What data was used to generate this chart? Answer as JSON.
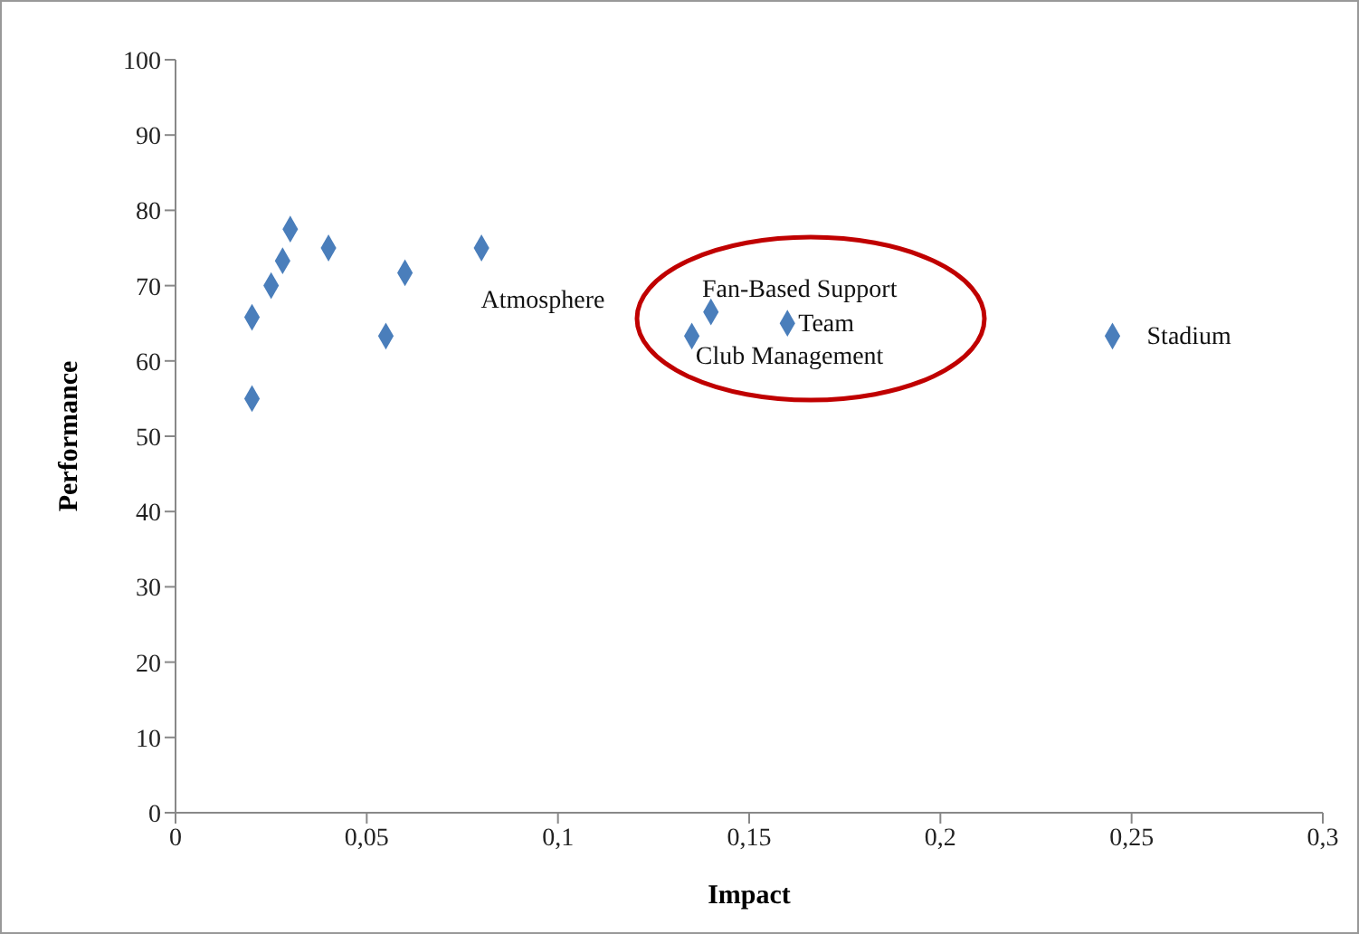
{
  "chart_data": {
    "type": "scatter",
    "xlabel": "Impact",
    "ylabel": "Performance",
    "x": [
      0.02,
      0.02,
      0.025,
      0.028,
      0.03,
      0.04,
      0.055,
      0.06,
      0.08,
      0.135,
      0.14,
      0.16,
      0.245
    ],
    "series": [
      {
        "color": "#4a7ebb",
        "values": [
          55,
          65.8,
          70,
          73.3,
          77.5,
          75,
          63.3,
          71.7,
          75,
          63.3,
          66.5,
          65,
          63.3
        ]
      }
    ],
    "xlim": [
      0,
      0.3
    ],
    "xticks": [
      0,
      {
        "value": 0.05,
        "label": "0,05"
      },
      {
        "value": 0.1,
        "label": "0,1"
      },
      {
        "value": 0.15,
        "label": "0,15"
      },
      {
        "value": 0.2,
        "label": "0,2"
      },
      {
        "value": 0.25,
        "label": "0,25"
      },
      {
        "value": 0.3,
        "label": "0,3"
      }
    ],
    "ylim": [
      0,
      100
    ],
    "yticks": [
      0,
      10,
      20,
      30,
      40,
      50,
      60,
      70,
      80,
      90,
      100
    ],
    "grid": false,
    "marker": "diamond",
    "annotations": [
      "Atmosphere",
      {
        "text": "Fan-Based Support",
        "x": 0.14,
        "y": 66.5
      },
      {
        "text": "Team",
        "x": 0.16,
        "y": 65
      },
      {
        "text": "Club Management",
        "x": 0.135,
        "y": 63.3
      },
      {
        "text": "Stadium",
        "x": 0.245,
        "y": 63.3
      }
    ]
  }
}
